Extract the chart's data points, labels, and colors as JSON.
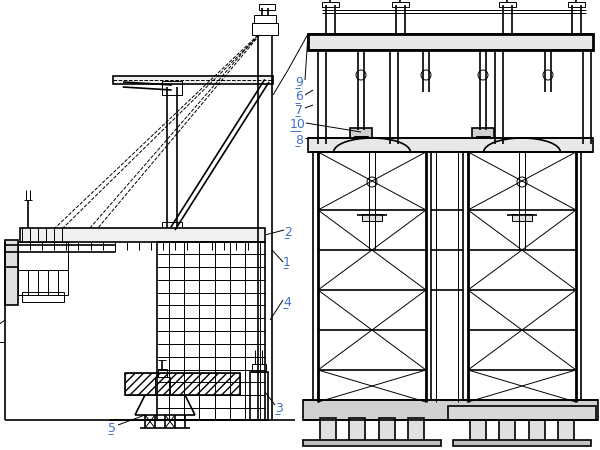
{
  "bg_color": "#ffffff",
  "line_color": "#000000",
  "label_color": "#4472c4",
  "figsize": [
    6.0,
    4.5
  ],
  "dpi": 100
}
